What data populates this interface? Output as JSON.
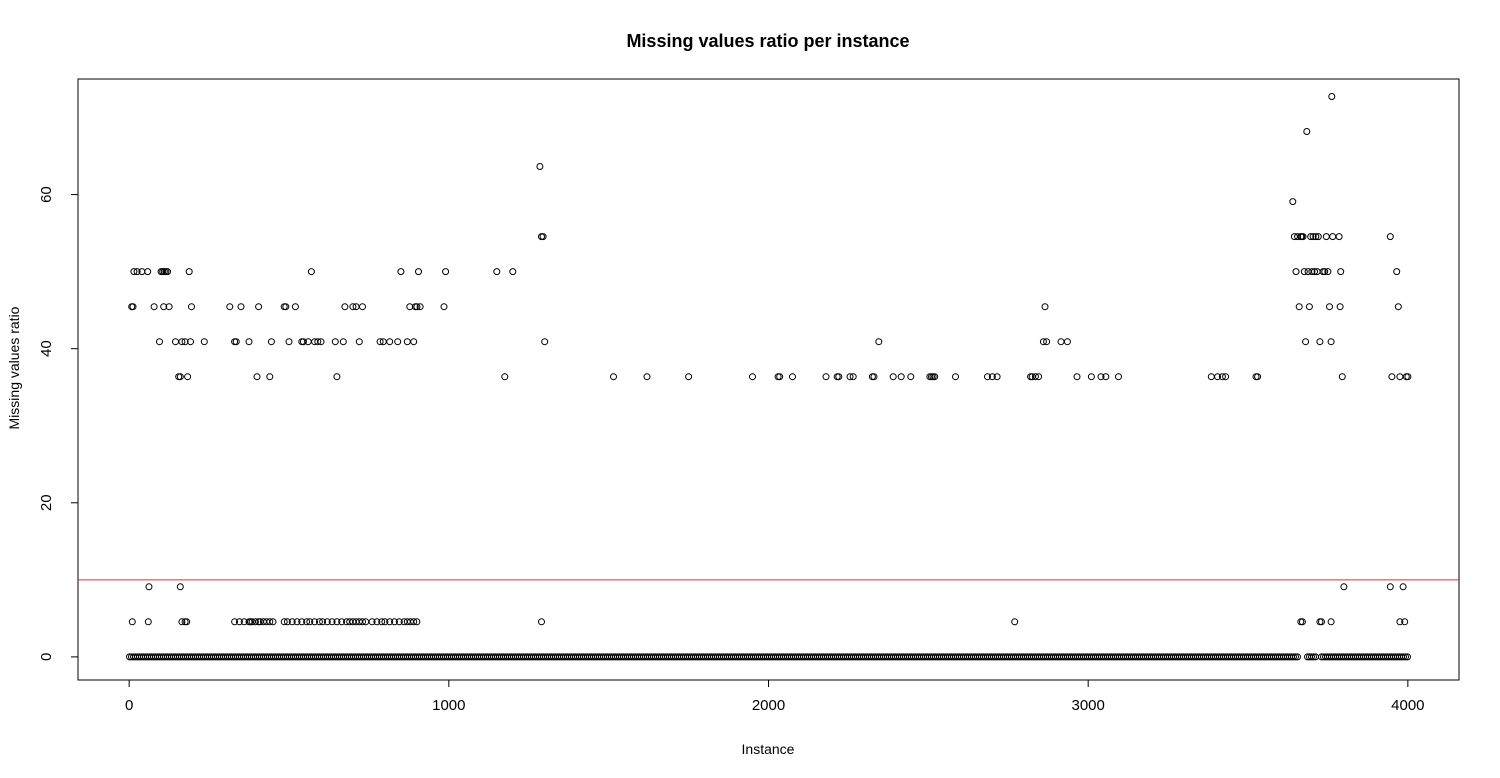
{
  "chart_data": {
    "type": "scatter",
    "title": "Missing values ratio per instance",
    "xlabel": "Instance",
    "ylabel": "Missing values ratio",
    "xlim": [
      -160,
      4160
    ],
    "ylim": [
      -3,
      75
    ],
    "x_ticks": [
      0,
      1000,
      2000,
      3000,
      4000
    ],
    "y_ticks": [
      0,
      20,
      40,
      60
    ],
    "threshold": {
      "y": 10,
      "color": "#e0302a"
    },
    "grid": false,
    "legend": "none",
    "marker": "open-circle",
    "zero_line": {
      "y": 0,
      "x_start": 1,
      "x_end": 4000,
      "x_gaps": [
        3665,
        3675,
        3720
      ]
    },
    "series": [
      {
        "values": [
          [
            8,
            45.45
          ],
          [
            12,
            45.45
          ],
          [
            15,
            50
          ],
          [
            25,
            50
          ],
          [
            40,
            50
          ],
          [
            58,
            50
          ],
          [
            78,
            45.45
          ],
          [
            95,
            40.91
          ],
          [
            100,
            50
          ],
          [
            105,
            50
          ],
          [
            108,
            45.45
          ],
          [
            110,
            50
          ],
          [
            115,
            50
          ],
          [
            120,
            50
          ],
          [
            125,
            45.45
          ],
          [
            145,
            40.91
          ],
          [
            155,
            36.36
          ],
          [
            160,
            36.36
          ],
          [
            165,
            40.91
          ],
          [
            175,
            40.91
          ],
          [
            183,
            36.36
          ],
          [
            188,
            50
          ],
          [
            192,
            40.91
          ],
          [
            195,
            45.45
          ],
          [
            235,
            40.91
          ],
          [
            315,
            45.45
          ],
          [
            330,
            40.91
          ],
          [
            335,
            40.91
          ],
          [
            350,
            45.45
          ],
          [
            375,
            40.91
          ],
          [
            400,
            36.36
          ],
          [
            405,
            45.45
          ],
          [
            440,
            36.36
          ],
          [
            445,
            40.91
          ],
          [
            485,
            45.45
          ],
          [
            490,
            45.45
          ],
          [
            500,
            40.91
          ],
          [
            520,
            45.45
          ],
          [
            540,
            40.91
          ],
          [
            545,
            40.91
          ],
          [
            560,
            40.91
          ],
          [
            570,
            50
          ],
          [
            580,
            40.91
          ],
          [
            590,
            40.91
          ],
          [
            600,
            40.91
          ],
          [
            645,
            40.91
          ],
          [
            650,
            36.36
          ],
          [
            670,
            40.91
          ],
          [
            675,
            45.45
          ],
          [
            700,
            45.45
          ],
          [
            710,
            45.45
          ],
          [
            720,
            40.91
          ],
          [
            730,
            45.45
          ],
          [
            785,
            40.91
          ],
          [
            795,
            40.91
          ],
          [
            815,
            40.91
          ],
          [
            840,
            40.91
          ],
          [
            850,
            50
          ],
          [
            870,
            40.91
          ],
          [
            878,
            45.45
          ],
          [
            890,
            40.91
          ],
          [
            895,
            45.45
          ],
          [
            900,
            45.45
          ],
          [
            905,
            50
          ],
          [
            910,
            45.45
          ],
          [
            985,
            45.45
          ],
          [
            990,
            50
          ],
          [
            1150,
            50
          ],
          [
            1175,
            36.36
          ],
          [
            1200,
            50
          ],
          [
            1285,
            63.64
          ],
          [
            1290,
            54.55
          ],
          [
            1295,
            54.55
          ],
          [
            1300,
            40.91
          ],
          [
            1515,
            36.36
          ],
          [
            1620,
            36.36
          ],
          [
            1750,
            36.36
          ],
          [
            1950,
            36.36
          ],
          [
            2030,
            36.36
          ],
          [
            2035,
            36.36
          ],
          [
            2075,
            36.36
          ],
          [
            2180,
            36.36
          ],
          [
            2215,
            36.36
          ],
          [
            2220,
            36.36
          ],
          [
            2255,
            36.36
          ],
          [
            2265,
            36.36
          ],
          [
            2325,
            36.36
          ],
          [
            2330,
            36.36
          ],
          [
            2345,
            40.91
          ],
          [
            2390,
            36.36
          ],
          [
            2415,
            36.36
          ],
          [
            2445,
            36.36
          ],
          [
            2505,
            36.36
          ],
          [
            2510,
            36.36
          ],
          [
            2515,
            36.36
          ],
          [
            2520,
            36.36
          ],
          [
            2585,
            36.36
          ],
          [
            2685,
            36.36
          ],
          [
            2700,
            36.36
          ],
          [
            2715,
            36.36
          ],
          [
            2820,
            36.36
          ],
          [
            2825,
            36.36
          ],
          [
            2835,
            36.36
          ],
          [
            2845,
            36.36
          ],
          [
            2860,
            40.91
          ],
          [
            2865,
            45.45
          ],
          [
            2870,
            40.91
          ],
          [
            2915,
            40.91
          ],
          [
            2935,
            40.91
          ],
          [
            2965,
            36.36
          ],
          [
            3010,
            36.36
          ],
          [
            3040,
            36.36
          ],
          [
            3055,
            36.36
          ],
          [
            3095,
            36.36
          ],
          [
            3385,
            36.36
          ],
          [
            3405,
            36.36
          ],
          [
            3420,
            36.36
          ],
          [
            3430,
            36.36
          ],
          [
            3525,
            36.36
          ],
          [
            3530,
            36.36
          ],
          [
            3640,
            59.09
          ],
          [
            3645,
            54.55
          ],
          [
            3650,
            50
          ],
          [
            3655,
            54.55
          ],
          [
            3660,
            45.45
          ],
          [
            3665,
            54.55
          ],
          [
            3668,
            54.55
          ],
          [
            3672,
            54.55
          ],
          [
            3676,
            50
          ],
          [
            3680,
            40.91
          ],
          [
            3684,
            68.18
          ],
          [
            3688,
            50
          ],
          [
            3692,
            45.45
          ],
          [
            3696,
            54.55
          ],
          [
            3700,
            50
          ],
          [
            3704,
            54.55
          ],
          [
            3708,
            50
          ],
          [
            3712,
            54.55
          ],
          [
            3716,
            50
          ],
          [
            3720,
            54.55
          ],
          [
            3725,
            40.91
          ],
          [
            3735,
            50
          ],
          [
            3740,
            50
          ],
          [
            3745,
            54.55
          ],
          [
            3750,
            50
          ],
          [
            3755,
            45.45
          ],
          [
            3760,
            40.91
          ],
          [
            3762,
            72.73
          ],
          [
            3765,
            54.55
          ],
          [
            3785,
            54.55
          ],
          [
            3788,
            45.45
          ],
          [
            3790,
            50
          ],
          [
            3795,
            36.36
          ],
          [
            3945,
            54.55
          ],
          [
            3950,
            36.36
          ],
          [
            3965,
            50
          ],
          [
            3970,
            45.45
          ],
          [
            3975,
            36.36
          ],
          [
            3995,
            36.36
          ],
          [
            4000,
            36.36
          ],
          [
            10,
            4.55
          ],
          [
            60,
            4.55
          ],
          [
            62,
            9.09
          ],
          [
            160,
            9.09
          ],
          [
            165,
            4.55
          ],
          [
            175,
            4.55
          ],
          [
            180,
            4.55
          ],
          [
            330,
            4.55
          ],
          [
            345,
            4.55
          ],
          [
            360,
            4.55
          ],
          [
            375,
            4.55
          ],
          [
            380,
            4.55
          ],
          [
            385,
            4.55
          ],
          [
            395,
            4.55
          ],
          [
            405,
            4.55
          ],
          [
            410,
            4.55
          ],
          [
            420,
            4.55
          ],
          [
            430,
            4.55
          ],
          [
            440,
            4.55
          ],
          [
            450,
            4.55
          ],
          [
            485,
            4.55
          ],
          [
            495,
            4.55
          ],
          [
            510,
            4.55
          ],
          [
            525,
            4.55
          ],
          [
            540,
            4.55
          ],
          [
            555,
            4.55
          ],
          [
            565,
            4.55
          ],
          [
            580,
            4.55
          ],
          [
            595,
            4.55
          ],
          [
            605,
            4.55
          ],
          [
            620,
            4.55
          ],
          [
            635,
            4.55
          ],
          [
            650,
            4.55
          ],
          [
            665,
            4.55
          ],
          [
            680,
            4.55
          ],
          [
            690,
            4.55
          ],
          [
            700,
            4.55
          ],
          [
            710,
            4.55
          ],
          [
            720,
            4.55
          ],
          [
            730,
            4.55
          ],
          [
            740,
            4.55
          ],
          [
            760,
            4.55
          ],
          [
            775,
            4.55
          ],
          [
            790,
            4.55
          ],
          [
            800,
            4.55
          ],
          [
            815,
            4.55
          ],
          [
            830,
            4.55
          ],
          [
            845,
            4.55
          ],
          [
            860,
            4.55
          ],
          [
            870,
            4.55
          ],
          [
            880,
            4.55
          ],
          [
            890,
            4.55
          ],
          [
            900,
            4.55
          ],
          [
            1290,
            4.55
          ],
          [
            2770,
            4.55
          ],
          [
            3665,
            4.55
          ],
          [
            3670,
            4.55
          ],
          [
            3725,
            4.55
          ],
          [
            3730,
            4.55
          ],
          [
            3760,
            4.55
          ],
          [
            3800,
            9.09
          ],
          [
            3945,
            9.09
          ],
          [
            3975,
            4.55
          ],
          [
            3985,
            9.09
          ],
          [
            3990,
            4.55
          ]
        ]
      }
    ]
  }
}
